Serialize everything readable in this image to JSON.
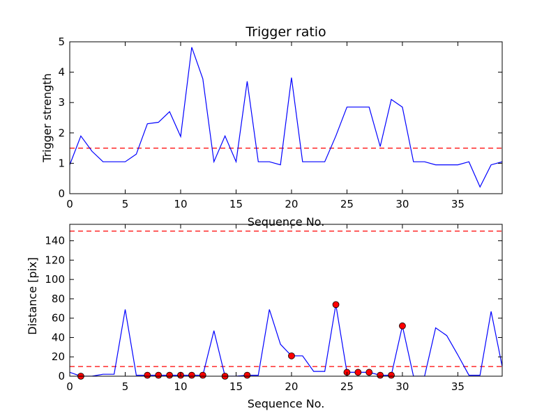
{
  "chart_data": [
    {
      "type": "line",
      "title": "Trigger ratio",
      "xlabel": "Sequence No.",
      "ylabel": "Trigger strength",
      "xlim": [
        0,
        39
      ],
      "ylim": [
        0,
        5
      ],
      "xticks": [
        0,
        5,
        10,
        15,
        20,
        25,
        30,
        35
      ],
      "yticks": [
        0,
        1,
        2,
        3,
        4,
        5
      ],
      "grid": false,
      "series": [
        {
          "color": "#0000ff",
          "x": [
            0,
            1,
            2,
            3,
            4,
            5,
            6,
            7,
            8,
            9,
            10,
            11,
            12,
            13,
            14,
            15,
            16,
            17,
            18,
            19,
            20,
            21,
            22,
            23,
            24,
            25,
            26,
            27,
            28,
            29,
            30,
            31,
            32,
            33,
            34,
            35,
            36,
            37,
            38,
            39
          ],
          "y": [
            0.95,
            1.9,
            1.4,
            1.05,
            1.05,
            1.05,
            1.3,
            2.3,
            2.35,
            2.7,
            1.88,
            4.82,
            3.78,
            1.05,
            1.9,
            1.05,
            3.7,
            1.05,
            1.05,
            0.95,
            3.82,
            1.05,
            1.05,
            1.05,
            1.9,
            2.85,
            2.85,
            2.85,
            1.55,
            3.1,
            2.85,
            1.05,
            1.05,
            0.95,
            0.95,
            0.95,
            1.05,
            0.22,
            0.95,
            1.05
          ]
        }
      ],
      "reference_lines": [
        {
          "y": 1.5,
          "color": "#ff0000",
          "style": "dashed"
        }
      ]
    },
    {
      "type": "line",
      "title": "",
      "xlabel": "Sequence No.",
      "ylabel": "Distance [pix]",
      "xlim": [
        0,
        39
      ],
      "ylim": [
        0,
        157
      ],
      "xticks": [
        0,
        5,
        10,
        15,
        20,
        25,
        30,
        35
      ],
      "yticks": [
        0,
        20,
        40,
        60,
        80,
        100,
        120,
        140
      ],
      "grid": false,
      "series": [
        {
          "color": "#0000ff",
          "x": [
            0,
            1,
            2,
            3,
            4,
            5,
            6,
            7,
            8,
            9,
            10,
            11,
            12,
            13,
            14,
            15,
            16,
            17,
            18,
            19,
            20,
            21,
            22,
            23,
            24,
            25,
            26,
            27,
            28,
            29,
            30,
            31,
            32,
            33,
            34,
            35,
            36,
            37,
            38,
            39
          ],
          "y": [
            4,
            0,
            0,
            2,
            2,
            69,
            1,
            1,
            1,
            1,
            1,
            1,
            1,
            47,
            0,
            0,
            1,
            1,
            69,
            33,
            21,
            21,
            5,
            5,
            74,
            4,
            4,
            4,
            1,
            1,
            52,
            0,
            0,
            50,
            42,
            22,
            1,
            1,
            67,
            10
          ]
        }
      ],
      "markers": {
        "color": "#ff0000",
        "x": [
          1,
          7,
          8,
          9,
          10,
          11,
          12,
          14,
          16,
          20,
          24,
          25,
          26,
          27,
          28,
          29,
          30
        ],
        "y": [
          0,
          1,
          1,
          1,
          1,
          1,
          1,
          0,
          1,
          21,
          74,
          4,
          4,
          4,
          1,
          1,
          52
        ]
      },
      "reference_lines": [
        {
          "y": 150,
          "color": "#ff0000",
          "style": "dashed"
        },
        {
          "y": 10,
          "color": "#ff0000",
          "style": "dashed"
        }
      ]
    }
  ]
}
